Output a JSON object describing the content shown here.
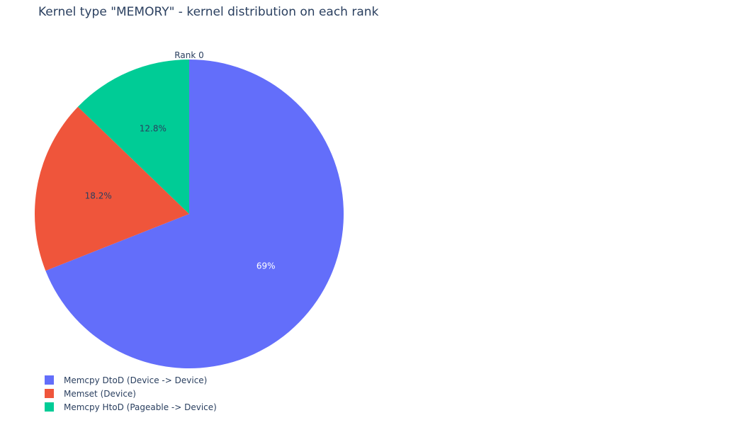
{
  "title": "Kernel type \"MEMORY\" - kernel distribution on each rank",
  "chart_data": {
    "type": "pie",
    "title": "Kernel type \"MEMORY\" - kernel distribution on each rank",
    "subplot_title": "Rank 0",
    "start_angle_deg": 90,
    "direction": "clockwise",
    "legend_placement": "bottom-left",
    "slices": [
      {
        "label": "Memcpy DtoD (Device -> Device)",
        "value": 69.0,
        "text": "69%",
        "color": "#636efa",
        "text_color": "#ffffff"
      },
      {
        "label": "Memset (Device)",
        "value": 18.2,
        "text": "18.2%",
        "color": "#ef553b",
        "text_color": "#2a3f5f"
      },
      {
        "label": "Memcpy HtoD (Pageable -> Device)",
        "value": 12.8,
        "text": "12.8%",
        "color": "#00cc96",
        "text_color": "#2a3f5f"
      }
    ]
  }
}
